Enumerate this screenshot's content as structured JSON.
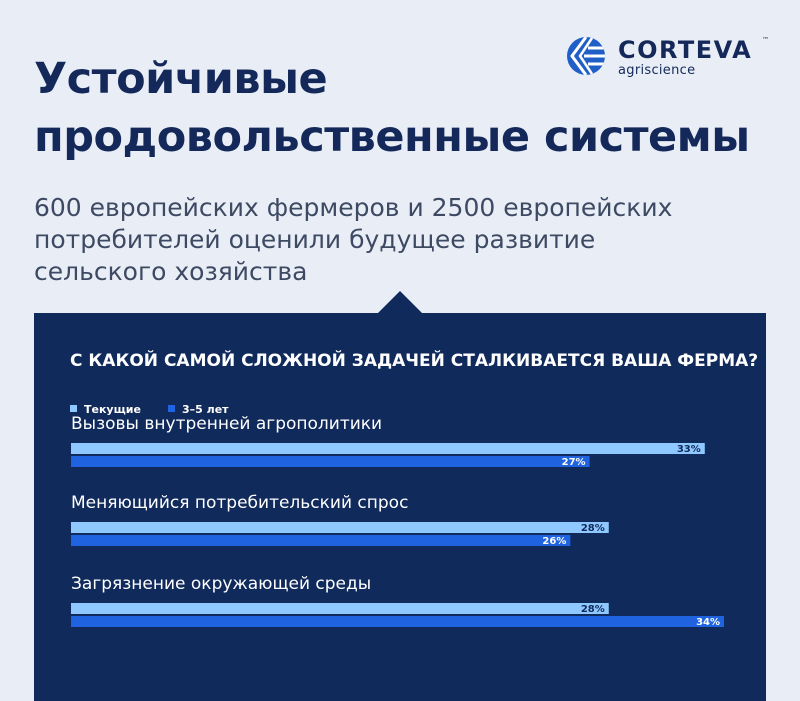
{
  "title_line1": "Устойчивые",
  "title_line2": "продовольственные системы",
  "subtitle_line1": "600 европейских фермеров и 2500 европейских",
  "subtitle_line2": "потребителей оценили будущее развитие",
  "subtitle_line3": "сельского хозяйства",
  "logo": {
    "word": "CORTEVA",
    "tm": "™",
    "sub": "agriscience",
    "icon": "corteva-globe-icon"
  },
  "colors": {
    "page_bg": "#e9eef6",
    "panel_bg": "#102a5b",
    "current": "#8fc7ff",
    "future": "#1f63e0",
    "title": "#14295a"
  },
  "chart_data": {
    "type": "bar",
    "orientation": "horizontal",
    "title": "С КАКОЙ САМОЙ СЛОЖНОЙ ЗАДАЧЕЙ СТАЛКИВАЕТСЯ ВАША ФЕРМА?",
    "categories": [
      "Вызовы внутренней агрополитики",
      "Меняющийся потребительский спрос",
      "Загрязнение окружающей среды"
    ],
    "series": [
      {
        "name": "Текущие",
        "color": "#8fc7ff",
        "values": [
          33,
          28,
          28
        ]
      },
      {
        "name": "3–5 лет",
        "color": "#1f63e0",
        "values": [
          27,
          26,
          34
        ]
      }
    ],
    "value_labels": [
      [
        "33%",
        "28%",
        "28%"
      ],
      [
        "27%",
        "26%",
        "34%"
      ]
    ],
    "unit": "%",
    "xlim": [
      0,
      34
    ],
    "legend_position": "top-left",
    "grid": false
  }
}
